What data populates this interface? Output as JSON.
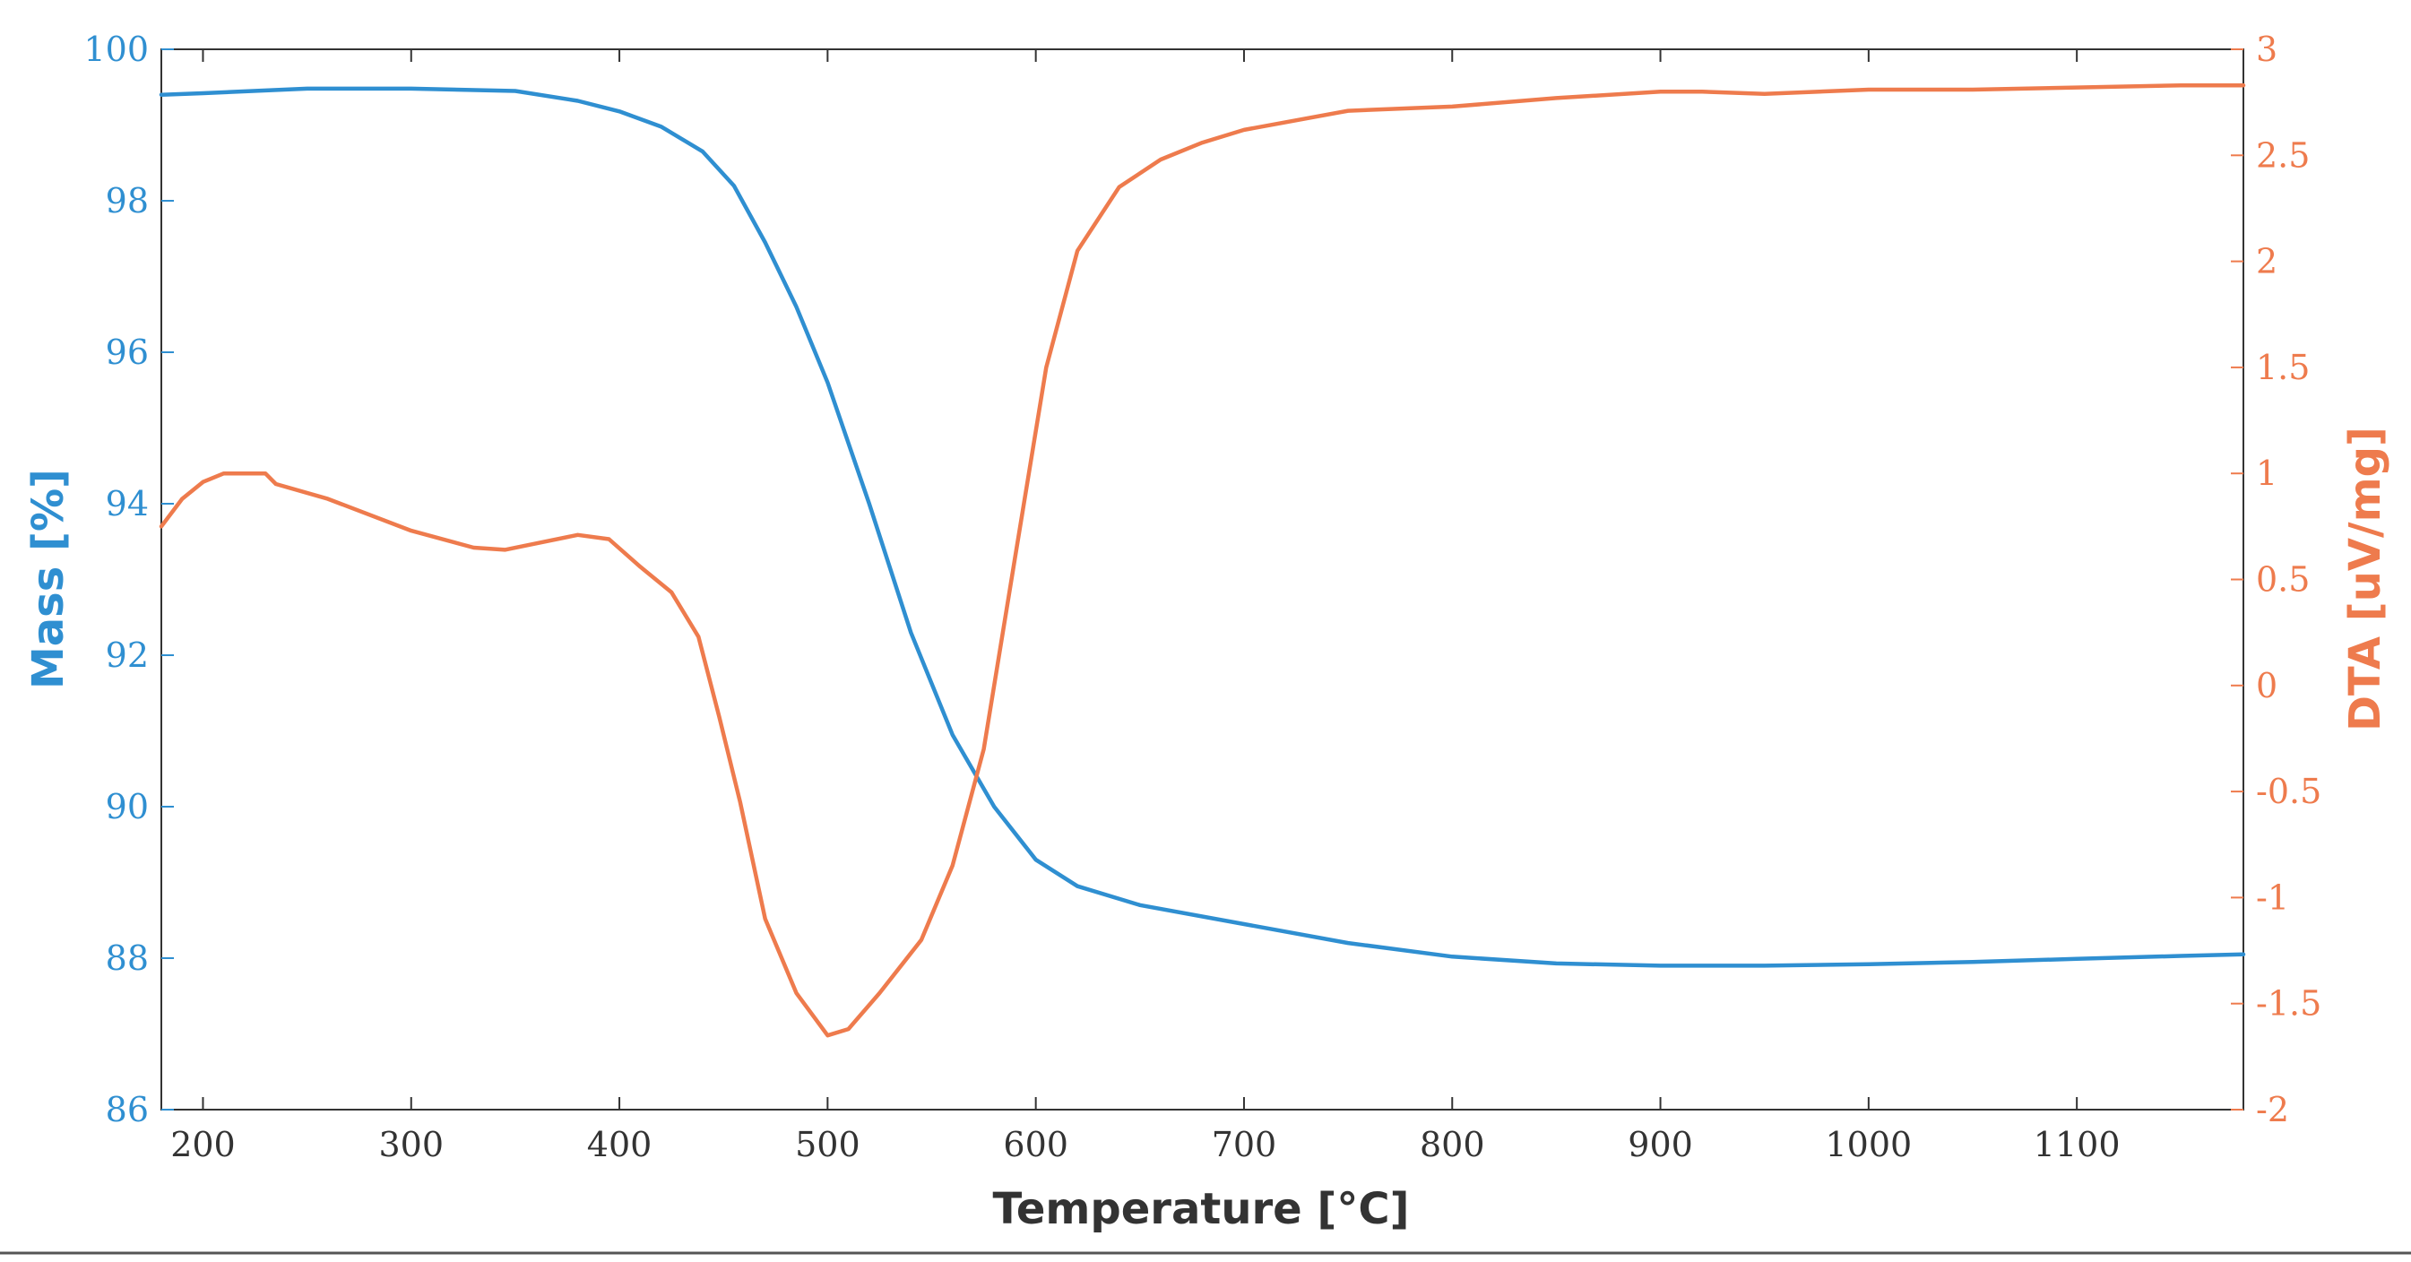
{
  "chart_data": {
    "type": "line",
    "xlabel": "Temperature [°C]",
    "xlim": [
      180,
      1180
    ],
    "x_ticks": [
      200,
      300,
      400,
      500,
      600,
      700,
      800,
      900,
      1000,
      1100
    ],
    "y_left": {
      "label": "Mass [%]",
      "lim": [
        86,
        100
      ],
      "ticks": [
        86,
        88,
        90,
        92,
        94,
        96,
        98,
        100
      ],
      "color": "#2f8fd1"
    },
    "y_right": {
      "label": "DTA [uV/mg]",
      "lim": [
        -2,
        3
      ],
      "ticks": [
        -2,
        -1.5,
        -1,
        -0.5,
        0,
        0.5,
        1,
        1.5,
        2,
        2.5,
        3
      ],
      "color": "#ee7b4d"
    },
    "series": [
      {
        "name": "Mass",
        "axis": "left",
        "color": "#2f8fd1",
        "x": [
          180,
          200,
          250,
          300,
          350,
          380,
          400,
          420,
          440,
          455,
          470,
          485,
          500,
          520,
          540,
          560,
          580,
          600,
          620,
          650,
          700,
          750,
          800,
          850,
          900,
          950,
          1000,
          1050,
          1100,
          1150,
          1180
        ],
        "y": [
          99.4,
          99.42,
          99.48,
          99.48,
          99.45,
          99.32,
          99.18,
          98.98,
          98.65,
          98.2,
          97.45,
          96.6,
          95.6,
          94.0,
          92.3,
          90.95,
          90.0,
          89.3,
          88.95,
          88.7,
          88.45,
          88.2,
          88.02,
          87.93,
          87.9,
          87.9,
          87.92,
          87.95,
          87.99,
          88.03,
          88.05
        ]
      },
      {
        "name": "DTA",
        "axis": "right",
        "color": "#ee7b4d",
        "x": [
          180,
          190,
          200,
          210,
          220,
          230,
          235,
          260,
          300,
          330,
          345,
          360,
          380,
          395,
          410,
          425,
          438,
          448,
          458,
          470,
          485,
          500,
          510,
          525,
          545,
          560,
          575,
          590,
          605,
          620,
          640,
          660,
          680,
          700,
          750,
          800,
          850,
          900,
          920,
          950,
          1000,
          1050,
          1100,
          1150,
          1180
        ],
        "y": [
          0.75,
          0.88,
          0.96,
          1.0,
          1.0,
          1.0,
          0.95,
          0.88,
          0.73,
          0.65,
          0.64,
          0.67,
          0.71,
          0.69,
          0.56,
          0.44,
          0.23,
          -0.15,
          -0.55,
          -1.1,
          -1.45,
          -1.65,
          -1.62,
          -1.45,
          -1.2,
          -0.85,
          -0.3,
          0.6,
          1.5,
          2.05,
          2.35,
          2.48,
          2.56,
          2.62,
          2.71,
          2.73,
          2.77,
          2.8,
          2.8,
          2.79,
          2.81,
          2.81,
          2.82,
          2.83,
          2.83
        ]
      }
    ]
  }
}
